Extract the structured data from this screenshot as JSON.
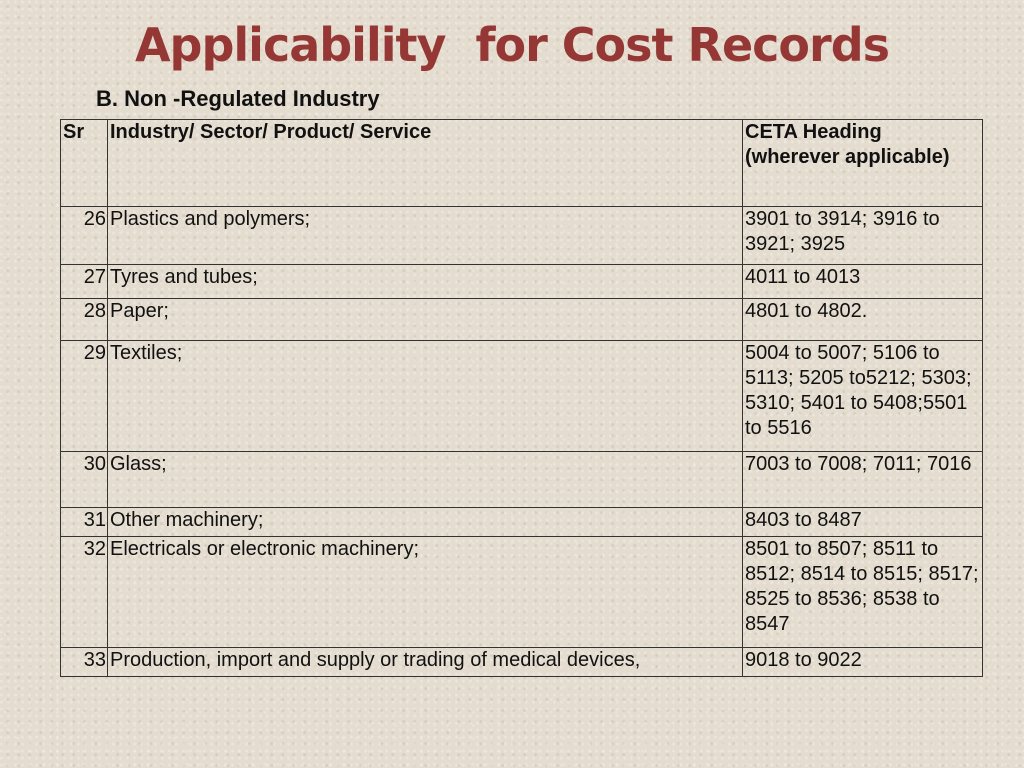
{
  "slide": {
    "title": "Applicability  for Cost Records",
    "subtitle": "B. Non -Regulated Industry"
  },
  "table": {
    "headers": [
      "Sr",
      "Industry/ Sector/ Product/ Service",
      "CETA Heading (wherever applicable)"
    ],
    "rows": [
      {
        "sr": "26",
        "industry": "Plastics and polymers;",
        "ceta": "3901 to 3914; 3916 to 3921; 3925"
      },
      {
        "sr": "27",
        "industry": "Tyres and tubes;",
        "ceta": "4011 to 4013"
      },
      {
        "sr": "28",
        "industry": "Paper;",
        "ceta": "4801 to 4802."
      },
      {
        "sr": "29",
        "industry": "Textiles;",
        "ceta": "5004 to 5007; 5106 to 5113; 5205 to5212; 5303; 5310; 5401 to 5408;5501 to 5516"
      },
      {
        "sr": "30",
        "industry": "Glass;",
        "ceta": "7003 to 7008; 7011; 7016"
      },
      {
        "sr": "31",
        "industry": "Other machinery;",
        "ceta": "8403 to 8487"
      },
      {
        "sr": "32",
        "industry": "Electricals or electronic machinery;",
        "ceta": "8501 to 8507; 8511 to 8512; 8514 to 8515; 8517; 8525 to 8536; 8538 to 8547"
      },
      {
        "sr": "33",
        "industry": "Production, import and supply or trading of medical devices,",
        "ceta": "9018 to 9022"
      }
    ]
  }
}
